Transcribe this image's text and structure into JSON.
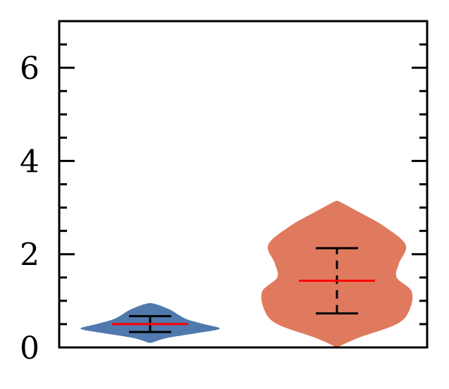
{
  "chart_data": {
    "type": "violin",
    "title": "",
    "xlabel": "",
    "ylabel": "",
    "ylim": [
      0,
      7
    ],
    "yticks": [
      0,
      2,
      4,
      6
    ],
    "grid": false,
    "legend": "none",
    "violins": [
      {
        "color": "#5079ad",
        "range": [
          0.1,
          0.95
        ],
        "profile": [
          [
            0.1,
            0.02
          ],
          [
            0.2,
            0.22
          ],
          [
            0.3,
            0.6
          ],
          [
            0.4,
            0.93
          ],
          [
            0.5,
            0.72
          ],
          [
            0.6,
            0.5
          ],
          [
            0.7,
            0.38
          ],
          [
            0.8,
            0.28
          ],
          [
            0.9,
            0.13
          ],
          [
            0.95,
            0.02
          ]
        ],
        "mean": 0.5,
        "whisker_low": 0.33,
        "whisker_high": 0.67,
        "whisker_style": "solid"
      },
      {
        "color": "#e07a5f",
        "range": [
          0.0,
          3.15
        ],
        "profile": [
          [
            0.0,
            0.0
          ],
          [
            0.2,
            0.28
          ],
          [
            0.5,
            0.8
          ],
          [
            0.8,
            0.97
          ],
          [
            1.2,
            1.0
          ],
          [
            1.5,
            0.8
          ],
          [
            1.8,
            0.83
          ],
          [
            2.2,
            0.92
          ],
          [
            2.6,
            0.63
          ],
          [
            2.9,
            0.3
          ],
          [
            3.1,
            0.07
          ],
          [
            3.15,
            0.0
          ]
        ],
        "mean": 1.43,
        "whisker_low": 0.73,
        "whisker_high": 2.13,
        "whisker_style": "dashed"
      }
    ]
  }
}
